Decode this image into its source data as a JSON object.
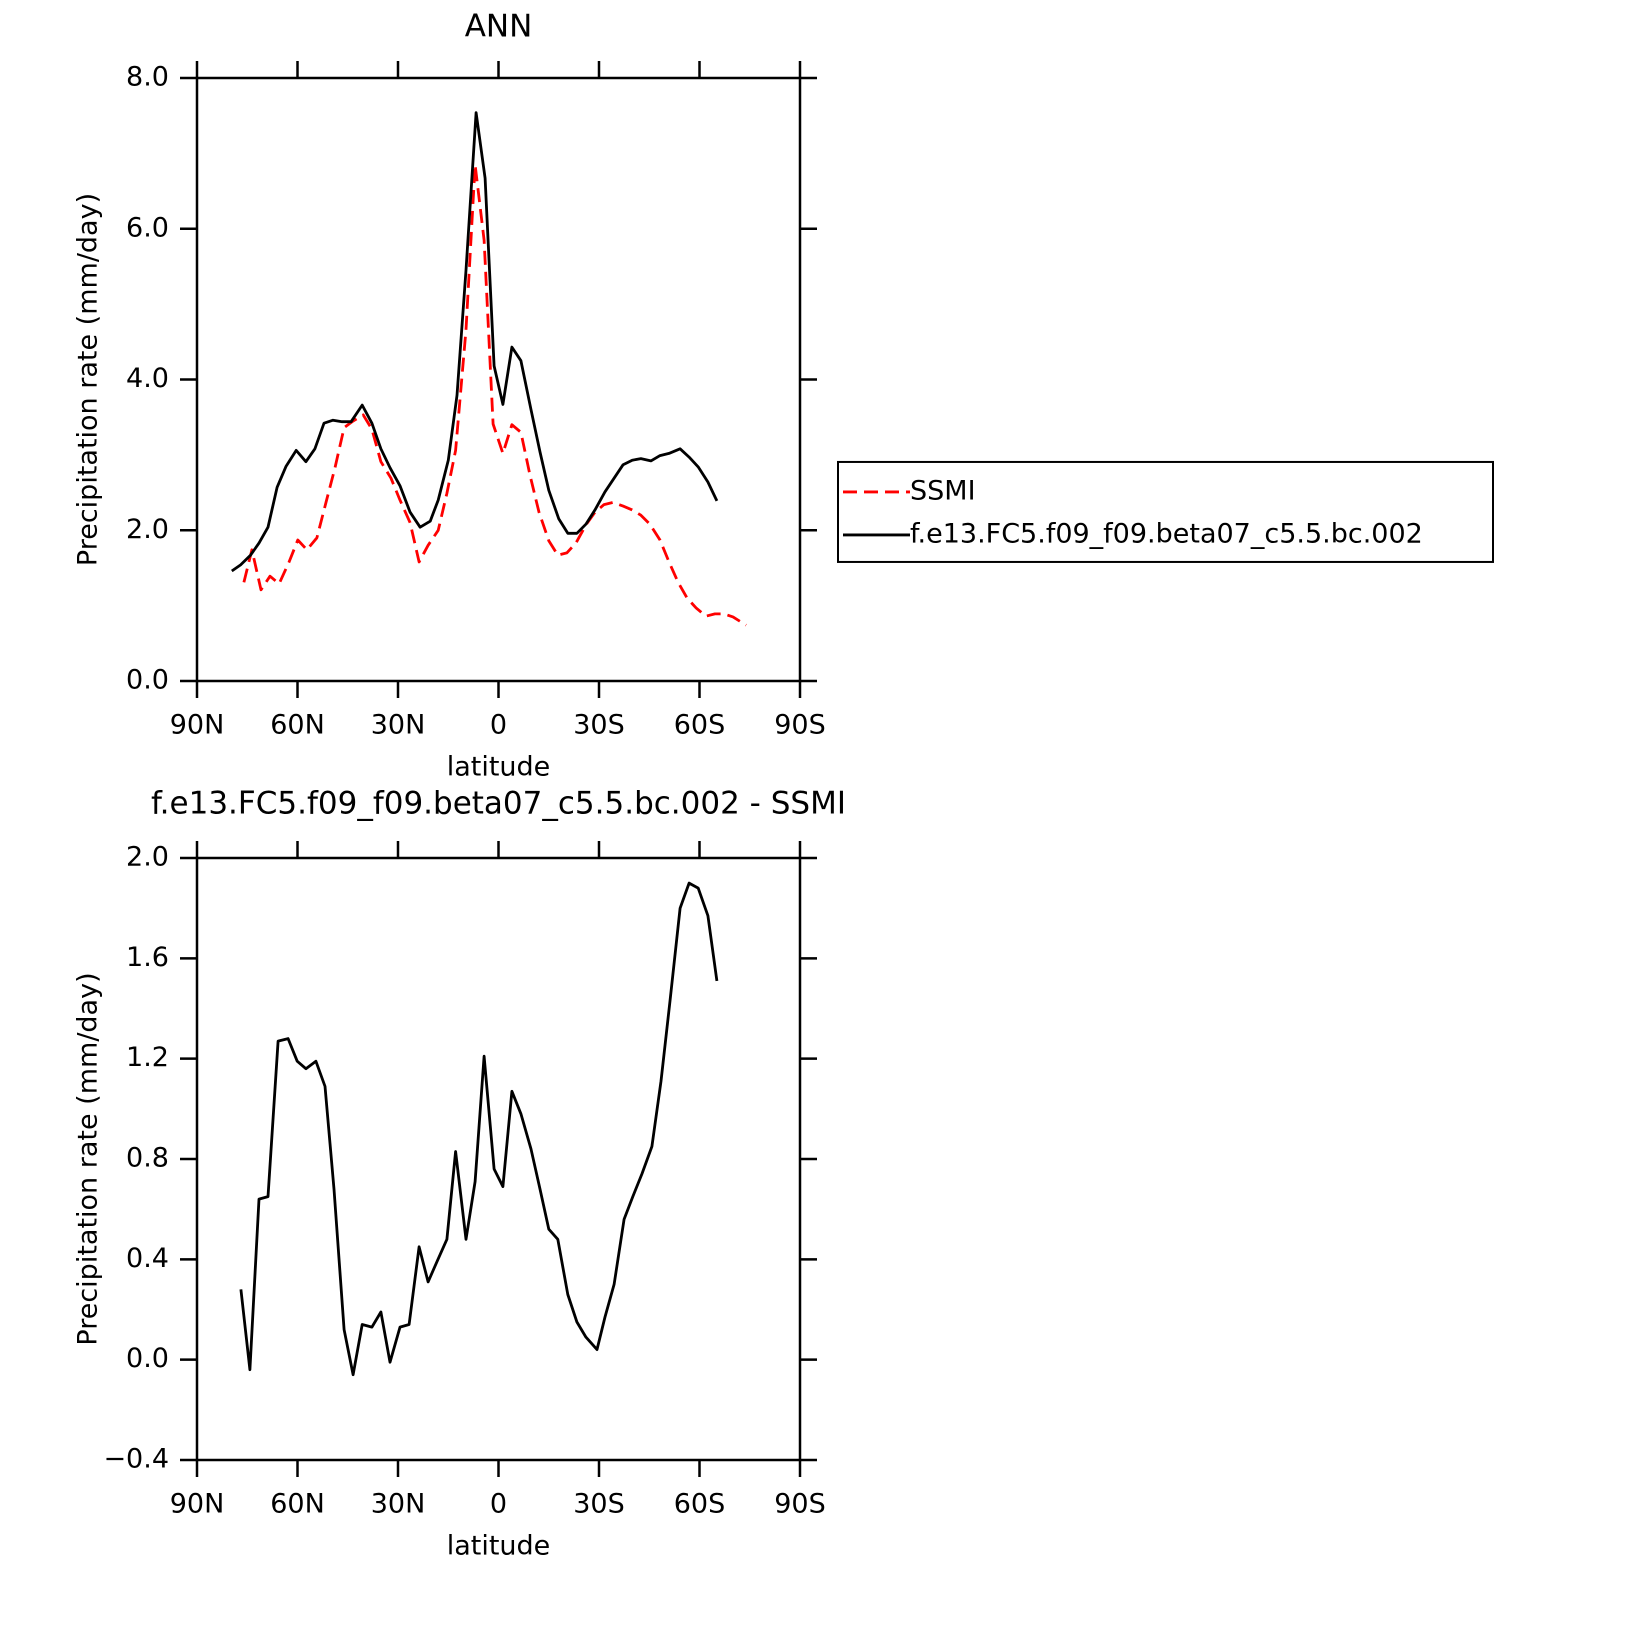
{
  "chart_data": [
    {
      "type": "line",
      "title": "ANN",
      "xlabel": "latitude",
      "ylabel": "Precipitation rate (mm/day)",
      "xlim": [
        90,
        -90
      ],
      "xticks": [
        {
          "value": 90,
          "label": "90N"
        },
        {
          "value": 60,
          "label": "60N"
        },
        {
          "value": 30,
          "label": "30N"
        },
        0,
        {
          "value": -30,
          "label": "30S"
        },
        {
          "value": -60,
          "label": "60S"
        },
        {
          "value": -90,
          "label": "90S"
        }
      ],
      "ylim": [
        0,
        8
      ],
      "yticks": [
        {
          "value": 0,
          "label": "0.0"
        },
        {
          "value": 2,
          "label": "2.0"
        },
        {
          "value": 4,
          "label": "4.0"
        },
        {
          "value": 6,
          "label": "6.0"
        },
        {
          "value": 8,
          "label": "8.0"
        }
      ],
      "legend": "right",
      "series": [
        {
          "name": "SSMI",
          "color": "#ff0000",
          "line_style": "dashed",
          "x": [
            76,
            73.6,
            70.9,
            68.2,
            65.5,
            62.5,
            59.9,
            57.2,
            54.2,
            51.5,
            48.8,
            46.1,
            43.4,
            40.4,
            37.8,
            35.1,
            32.1,
            29.4,
            26.4,
            23.7,
            21,
            18,
            15.4,
            12.8,
            9.7,
            7,
            4.3,
            1.6,
            -1.3,
            -4,
            -6.7,
            -9.4,
            -12.1,
            -15,
            -17.7,
            -20.4,
            -23.1,
            -26.1,
            -28.8,
            -31.5,
            -34.2,
            -37.2,
            -39.9,
            -42.5,
            -45.2,
            -48.2,
            -50.9,
            -53.6,
            -56.3,
            -59,
            -61.9,
            -64.6,
            -67.3,
            -70,
            -73.9
          ],
          "values": [
            1.31,
            1.74,
            1.21,
            1.39,
            1.29,
            1.58,
            1.87,
            1.74,
            1.9,
            2.37,
            2.83,
            3.36,
            3.45,
            3.53,
            3.34,
            2.91,
            2.69,
            2.4,
            2.1,
            1.58,
            1.8,
            2.0,
            2.49,
            3.06,
            4.66,
            6.85,
            5.85,
            3.41,
            3.02,
            3.4,
            3.3,
            2.73,
            2.24,
            1.86,
            1.67,
            1.7,
            1.83,
            2.07,
            2.24,
            2.34,
            2.37,
            2.32,
            2.27,
            2.2,
            2.08,
            1.87,
            1.58,
            1.31,
            1.1,
            0.97,
            0.86,
            0.89,
            0.89,
            0.85,
            0.74
          ]
        },
        {
          "name": "f.e13.FC5.f09_f09.beta07_c5.5.bc.002",
          "color": "#000000",
          "line_style": "solid",
          "x": [
            79.6,
            77,
            74,
            71.5,
            68.8,
            66.1,
            63.4,
            60.4,
            57.5,
            54.8,
            52.1,
            49.4,
            46.7,
            44,
            40.7,
            37.8,
            35.1,
            32.4,
            29.4,
            26.4,
            23.4,
            20.4,
            18,
            15,
            12.4,
            9.7,
            6.7,
            4,
            1.3,
            -1.3,
            -4,
            -6.7,
            -9.7,
            -12.4,
            -15,
            -18,
            -20.7,
            -23.4,
            -26.1,
            -28.8,
            -31.8,
            -34.5,
            -37.2,
            -39.9,
            -42.5,
            -45.5,
            -48.2,
            -50.9,
            -54.2,
            -56.9,
            -59.6,
            -62.5,
            -65.2
          ],
          "values": [
            1.46,
            1.54,
            1.67,
            1.83,
            2.04,
            2.57,
            2.85,
            3.06,
            2.91,
            3.08,
            3.42,
            3.46,
            3.44,
            3.44,
            3.66,
            3.42,
            3.08,
            2.83,
            2.59,
            2.24,
            2.04,
            2.12,
            2.4,
            2.93,
            3.79,
            5.45,
            7.54,
            6.67,
            4.18,
            3.67,
            4.43,
            4.25,
            3.6,
            3.04,
            2.53,
            2.15,
            1.96,
            1.96,
            2.08,
            2.27,
            2.51,
            2.69,
            2.87,
            2.93,
            2.95,
            2.92,
            2.99,
            3.02,
            3.08,
            2.97,
            2.84,
            2.64,
            2.39
          ]
        }
      ]
    },
    {
      "type": "line",
      "title": "f.e13.FC5.f09_f09.beta07_c5.5.bc.002 - SSMI",
      "xlabel": "latitude",
      "ylabel": "Precipitation rate (mm/day)",
      "xlim": [
        90,
        -90
      ],
      "xticks": [
        {
          "value": 90,
          "label": "90N"
        },
        {
          "value": 60,
          "label": "60N"
        },
        {
          "value": 30,
          "label": "30N"
        },
        0,
        {
          "value": -30,
          "label": "30S"
        },
        {
          "value": -60,
          "label": "60S"
        },
        {
          "value": -90,
          "label": "90S"
        }
      ],
      "ylim": [
        -0.4,
        2
      ],
      "yticks": [
        {
          "value": -0.4,
          "label": "−0.4"
        },
        {
          "value": 0,
          "label": "0.0"
        },
        {
          "value": 0.4,
          "label": "0.4"
        },
        {
          "value": 0.8,
          "label": "0.8"
        },
        {
          "value": 1.2,
          "label": "1.2"
        },
        {
          "value": 1.6,
          "label": "1.6"
        },
        {
          "value": 2,
          "label": "2.0"
        }
      ],
      "series": [
        {
          "color": "#000000",
          "line_style": "solid",
          "x": [
            76.9,
            74.2,
            71.5,
            68.8,
            65.8,
            62.8,
            60.1,
            57.5,
            54.5,
            51.8,
            49.1,
            46.1,
            43.4,
            40.7,
            37.8,
            35.1,
            32.4,
            29.4,
            26.7,
            23.7,
            21,
            18.4,
            15.4,
            12.8,
            9.7,
            7,
            4.3,
            1.3,
            -1.3,
            -4,
            -6.7,
            -9.7,
            -12.4,
            -15,
            -17.7,
            -20.7,
            -23.4,
            -26.1,
            -29.4,
            -31.8,
            -34.5,
            -37.5,
            -40.1,
            -42.8,
            -45.8,
            -48.5,
            -51.2,
            -54.2,
            -56.9,
            -59.6,
            -62.5,
            -65.2
          ],
          "values": [
            0.28,
            -0.04,
            0.64,
            0.65,
            1.27,
            1.28,
            1.19,
            1.16,
            1.19,
            1.09,
            0.68,
            0.12,
            -0.06,
            0.14,
            0.13,
            0.19,
            -0.01,
            0.13,
            0.14,
            0.45,
            0.31,
            0.39,
            0.48,
            0.83,
            0.48,
            0.71,
            1.21,
            0.76,
            0.69,
            1.07,
            0.98,
            0.84,
            0.68,
            0.52,
            0.48,
            0.26,
            0.15,
            0.09,
            0.04,
            0.17,
            0.3,
            0.56,
            0.65,
            0.74,
            0.85,
            1.11,
            1.43,
            1.8,
            1.9,
            1.88,
            1.77,
            1.51
          ]
        }
      ]
    }
  ]
}
